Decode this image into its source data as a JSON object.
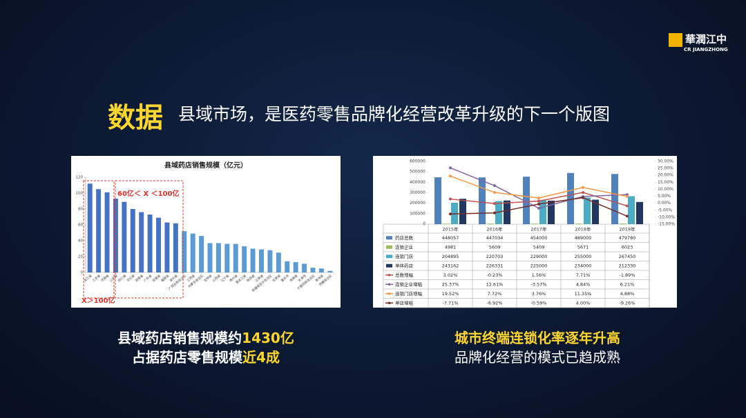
{
  "slide": {
    "logo": "華潤江中",
    "logo_sub": "CR JIANGZHONG",
    "heading": "数据",
    "title": "县域市场，是医药零售品牌化经营改革升级的下一个版图",
    "left_caption": [
      "县域药店销售规模约",
      "1430亿",
      "占据药店零售规模",
      "近4成"
    ],
    "right_caption": [
      "城市终端连锁化率逐年升高",
      "品牌化经营的模式已趋成熟"
    ]
  },
  "chart_data": [
    {
      "type": "bar",
      "title": "县域药店销售规模（亿元）",
      "categories": [
        "浙江省",
        "江苏省",
        "河南省",
        "山东省",
        "四川省",
        "河北省",
        "湖南省",
        "广东省",
        "安徽省",
        "福建省",
        "湖北省",
        "广西壮族自治区",
        "江西省",
        "内蒙古自治区",
        "吉林省",
        "山西省",
        "辽宁省",
        "贵州省",
        "黑龙江省",
        "陕西省",
        "云南省",
        "新疆维吾尔自治区",
        "甘肃省",
        "重庆市",
        "海南省",
        "天津市",
        "宁夏回族自治区",
        "青海省",
        "西藏自治区"
      ],
      "values": [
        112,
        105,
        101,
        93,
        89,
        80,
        76,
        73,
        69,
        63,
        62,
        52,
        49,
        46,
        37,
        37,
        36,
        36,
        33,
        30,
        29,
        28,
        25,
        14,
        13,
        11,
        6,
        5,
        2
      ],
      "colors": [
        "#4472c4",
        "#4472c4",
        "#4472c4",
        "#4472c4",
        "#4472c4",
        "#4472c4",
        "#4472c4",
        "#4472c4",
        "#4472c4",
        "#4472c4",
        "#4472c4",
        "#5b9bd5",
        "#5b9bd5",
        "#5b9bd5",
        "#5b9bd5",
        "#5b9bd5",
        "#5b9bd5",
        "#5b9bd5",
        "#5b9bd5",
        "#5b9bd5",
        "#5b9bd5",
        "#5b9bd5",
        "#5b9bd5",
        "#5b9bd5",
        "#5b9bd5",
        "#5b9bd5",
        "#5b9bd5",
        "#5b9bd5",
        "#5b9bd5"
      ],
      "ylim": [
        0,
        120
      ],
      "yticks": [
        0,
        20,
        40,
        60,
        80,
        100,
        120
      ],
      "grid": false,
      "annotations": [
        "60亿＜ X ＜100亿",
        "X＞100亿"
      ]
    },
    {
      "type": "bar_line",
      "categories": [
        "2015年",
        "2016年",
        "2017年",
        "2018年",
        "2019年"
      ],
      "series": [
        {
          "name": "药店总数",
          "color": "#4f81bd",
          "values": [
            448057,
            447034,
            454000,
            489000,
            479780
          ]
        },
        {
          "name": "连锁企业",
          "color": "#9bbb59",
          "values": [
            4981,
            5609,
            5409,
            5671,
            6023
          ]
        },
        {
          "name": "连锁门店",
          "color": "#4bacc6",
          "values": [
            204895,
            220703,
            229000,
            255000,
            267450
          ]
        },
        {
          "name": "单体药店",
          "color": "#1f3864",
          "values": [
            243162,
            226331,
            225000,
            234000,
            212330
          ]
        },
        {
          "name": "总数增幅",
          "color": "#c0504d",
          "axis": "y2",
          "values": [
            3.02,
            -0.23,
            1.56,
            7.71,
            -1.89
          ],
          "value_labels": [
            "3.02%",
            "-0.23%",
            "1.56%",
            "7.71%",
            "-1.89%"
          ]
        },
        {
          "name": "连锁企业增幅",
          "color": "#8064a2",
          "axis": "y2",
          "values": [
            25.37,
            12.61,
            -3.57,
            4.84,
            6.21
          ],
          "value_labels": [
            "25.37%",
            "12.61%",
            "-3.57%",
            "4.84%",
            "6.21%"
          ]
        },
        {
          "name": "连锁门店增幅",
          "color": "#f79646",
          "axis": "y2",
          "values": [
            19.52,
            7.72,
            3.76,
            11.35,
            4.88
          ],
          "value_labels": [
            "19.52%",
            "7.72%",
            "3.76%",
            "11.35%",
            "4.88%"
          ]
        },
        {
          "name": "单店增幅",
          "color": "#772c2a",
          "axis": "y2",
          "values": [
            -7.71,
            -6.92,
            -0.59,
            4.0,
            -9.26
          ],
          "value_labels": [
            "-7.71%",
            "-6.92%",
            "-0.59%",
            "4.00%",
            "-9.26%"
          ]
        }
      ],
      "ylim": [
        0,
        600000
      ],
      "yticks": [
        0,
        100000,
        200000,
        300000,
        400000,
        500000,
        600000
      ],
      "y2lim": [
        -15,
        30
      ],
      "y2ticks": [
        {
          "value": -15,
          "label": "-15.00%"
        },
        {
          "value": -10,
          "label": "-10.00%"
        },
        {
          "value": -5,
          "label": "-5.00%"
        },
        {
          "value": 0,
          "label": "0.00%"
        },
        {
          "value": 5,
          "label": "5.00%"
        },
        {
          "value": 10,
          "label": "10.00%"
        },
        {
          "value": 15,
          "label": "15.00%"
        },
        {
          "value": 20,
          "label": "20.00%"
        },
        {
          "value": 25,
          "label": "25.00%"
        },
        {
          "value": 30,
          "label": "30.00%"
        }
      ],
      "grid": false
    }
  ]
}
